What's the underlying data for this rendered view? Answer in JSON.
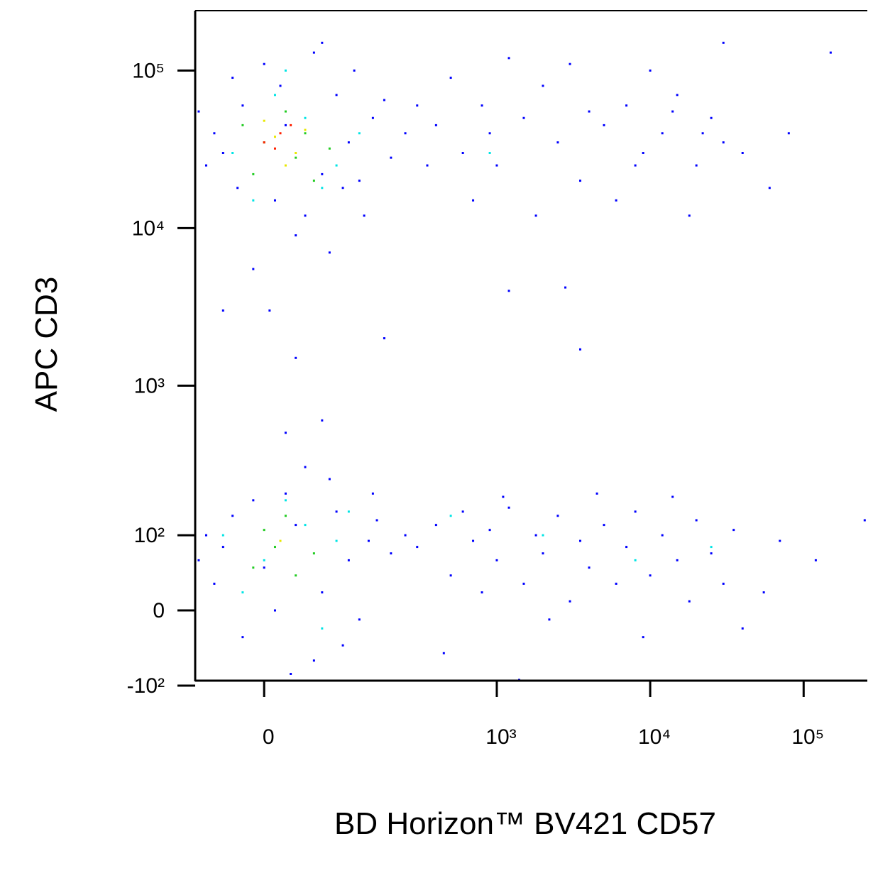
{
  "chart_data": {
    "type": "scatter",
    "x_label": "BD Horizon™ BV421 CD57",
    "y_label": "APC  CD3",
    "xscale": "biexponential",
    "yscale": "biexponential",
    "xlim": [
      -75,
      260000
    ],
    "ylim": [
      -90,
      240000
    ],
    "xticks": [
      {
        "value": 0,
        "label": "0"
      },
      {
        "value": 1000,
        "label": "10³"
      },
      {
        "value": 10000,
        "label": "10⁴"
      },
      {
        "value": 100000,
        "label": "10⁵"
      }
    ],
    "yticks": [
      {
        "value": -100,
        "label": "-10²"
      },
      {
        "value": 0,
        "label": "0"
      },
      {
        "value": 100,
        "label": "10²"
      },
      {
        "value": 1000,
        "label": "10³"
      },
      {
        "value": 10000,
        "label": "10⁴"
      },
      {
        "value": 100000,
        "label": "10⁵"
      }
    ],
    "series": [
      {
        "color": "#0000ff",
        "x": [
          -40,
          20,
          60,
          -20,
          100,
          80,
          -60,
          10,
          40,
          150,
          -30,
          120,
          0,
          50,
          -50,
          200,
          30,
          70,
          -10,
          90,
          180,
          250,
          -70,
          15,
          110,
          130,
          -25,
          60,
          300,
          5,
          400,
          600,
          800,
          1000,
          1500,
          2000,
          2500,
          3500,
          5000,
          7000,
          9000,
          12000,
          15000,
          20000,
          25000,
          30000,
          500,
          700,
          1200,
          3000,
          6000,
          10000,
          18000,
          40000,
          350,
          900,
          4000,
          8000,
          14000,
          22000,
          60000,
          80000,
          150000,
          1800,
          2800,
          30000,
          -40,
          0,
          30,
          60,
          -20,
          80,
          100,
          -60,
          20,
          50,
          140,
          10,
          -10,
          70,
          120,
          -50,
          40,
          160,
          90,
          200,
          -30,
          25,
          150,
          250,
          -70,
          300,
          400,
          500,
          600,
          700,
          800,
          900,
          1000,
          1200,
          1500,
          1800,
          2000,
          2500,
          3000,
          3500,
          4000,
          5000,
          6000,
          7000,
          8000,
          10000,
          12000,
          15000,
          18000,
          20000,
          25000,
          30000,
          35000,
          40000,
          450,
          1100,
          2200,
          4500,
          9000,
          14000,
          55000,
          70000,
          120000,
          250000,
          1400,
          -40,
          30,
          180,
          3500,
          20,
          60,
          1200
        ],
        "y": [
          30000,
          45000,
          22000,
          60000,
          35000,
          70000,
          25000,
          15000,
          12000,
          50000,
          90000,
          20000,
          110000,
          130000,
          40000,
          28000,
          9000,
          7000,
          5500,
          18000,
          65000,
          40000,
          55000,
          80000,
          100000,
          12000,
          18000,
          150000,
          60000,
          3000,
          45000,
          30000,
          60000,
          25000,
          50000,
          80000,
          35000,
          20000,
          45000,
          60000,
          30000,
          40000,
          70000,
          25000,
          50000,
          35000,
          90000,
          15000,
          120000,
          110000,
          15000,
          100000,
          12000,
          30000,
          25000,
          40000,
          55000,
          25000,
          55000,
          40000,
          18000,
          40000,
          130000,
          12000,
          4200,
          150000,
          80,
          50,
          120,
          20,
          -30,
          150,
          60,
          100,
          200,
          -60,
          90,
          0,
          180,
          250,
          -10,
          30,
          300,
          130,
          -40,
          70,
          140,
          -80,
          200,
          100,
          60,
          80,
          120,
          40,
          150,
          90,
          20,
          110,
          60,
          160,
          30,
          100,
          70,
          140,
          10,
          90,
          50,
          120,
          30,
          80,
          150,
          40,
          100,
          60,
          10,
          130,
          70,
          30,
          110,
          -20,
          -50,
          190,
          -10,
          200,
          -30,
          190,
          20,
          90,
          60,
          130,
          -90,
          3000,
          1500,
          2000,
          1700,
          500,
          600,
          4000
        ]
      },
      {
        "color": "#00e5e5",
        "x": [
          -30,
          40,
          80,
          10,
          -10,
          120,
          60,
          20,
          0,
          40,
          -20,
          80,
          20,
          60,
          100,
          -40,
          2000,
          8000,
          500,
          25000,
          900
        ],
        "y": [
          30000,
          50000,
          25000,
          70000,
          15000,
          40000,
          18000,
          100000,
          60,
          120,
          20,
          90,
          180,
          -20,
          150,
          100,
          100,
          60,
          140,
          80,
          30000
        ]
      },
      {
        "color": "#22cc22",
        "x": [
          0,
          30,
          -20,
          50,
          20,
          70,
          -10,
          40,
          10,
          30,
          0,
          50,
          -10,
          20
        ],
        "y": [
          35000,
          28000,
          45000,
          20000,
          55000,
          32000,
          22000,
          40000,
          80,
          40,
          110,
          70,
          50,
          140
        ]
      },
      {
        "color": "#e8e800",
        "x": [
          10,
          30,
          0,
          20,
          40,
          15
        ],
        "y": [
          38000,
          30000,
          48000,
          25000,
          42000,
          90
        ]
      },
      {
        "color": "#ff2000",
        "x": [
          15,
          0,
          25,
          10
        ],
        "y": [
          40000,
          35000,
          45000,
          32000
        ]
      }
    ]
  }
}
